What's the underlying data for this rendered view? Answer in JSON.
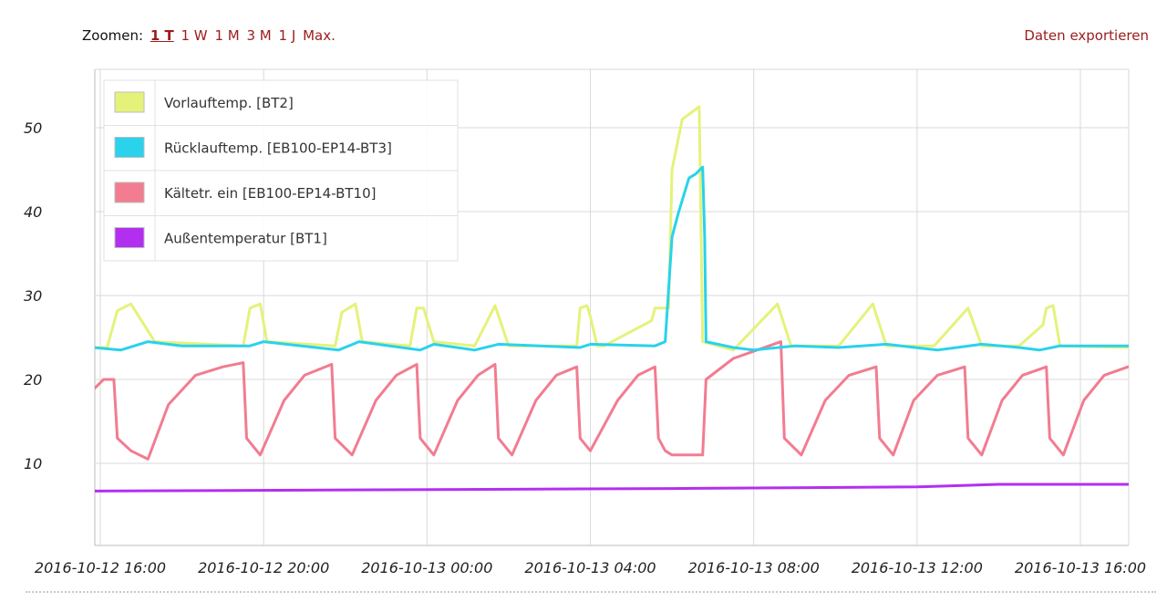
{
  "toolbar": {
    "zoom_label": "Zoomen:",
    "zoom_options": [
      "1 T",
      "1 W",
      "1 M",
      "3 M",
      "1 J",
      "Max."
    ],
    "active_zoom": "1 T",
    "export_label": "Daten exportieren"
  },
  "colors": {
    "series": [
      "#e5f27a",
      "#2ad2ec",
      "#f27c90",
      "#b32ff0"
    ],
    "grid": "#d9d9d9"
  },
  "chart_data": {
    "type": "line",
    "xlim": [
      "2016-10-12 16:00",
      "2016-10-13 17:10"
    ],
    "ylim": [
      0,
      57
    ],
    "y_ticks": [
      10,
      20,
      30,
      40,
      50
    ],
    "x_ticks": [
      "2016-10-12 16:00",
      "2016-10-12 20:00",
      "2016-10-13 00:00",
      "2016-10-13 04:00",
      "2016-10-13 08:00",
      "2016-10-13 12:00",
      "2016-10-13 16:00"
    ],
    "grid": true,
    "legend_position": "top-left",
    "series": [
      {
        "name": "Vorlauftemp. [BT2]",
        "points": [
          [
            "2016-10-12 15:50",
            23.8
          ],
          [
            "2016-10-12 16:10",
            23.8
          ],
          [
            "2016-10-12 16:25",
            28.2
          ],
          [
            "2016-10-12 16:45",
            29.0
          ],
          [
            "2016-10-12 17:20",
            24.5
          ],
          [
            "2016-10-12 19:30",
            24.0
          ],
          [
            "2016-10-12 19:40",
            28.5
          ],
          [
            "2016-10-12 19:55",
            29.0
          ],
          [
            "2016-10-12 20:05",
            24.5
          ],
          [
            "2016-10-12 21:45",
            24.0
          ],
          [
            "2016-10-12 21:55",
            28.0
          ],
          [
            "2016-10-12 22:15",
            29.0
          ],
          [
            "2016-10-12 22:25",
            24.5
          ],
          [
            "2016-10-12 23:35",
            24.0
          ],
          [
            "2016-10-12 23:45",
            28.5
          ],
          [
            "2016-10-12 23:55",
            28.5
          ],
          [
            "2016-10-13 00:10",
            24.5
          ],
          [
            "2016-10-13 01:10",
            24.0
          ],
          [
            "2016-10-13 01:40",
            28.8
          ],
          [
            "2016-10-13 02:00",
            24.0
          ],
          [
            "2016-10-13 03:40",
            24.0
          ],
          [
            "2016-10-13 03:45",
            28.5
          ],
          [
            "2016-10-13 03:55",
            28.8
          ],
          [
            "2016-10-13 04:00",
            27.5
          ],
          [
            "2016-10-13 04:10",
            24.0
          ],
          [
            "2016-10-13 04:20",
            24.0
          ],
          [
            "2016-10-13 05:30",
            27.0
          ],
          [
            "2016-10-13 05:35",
            28.5
          ],
          [
            "2016-10-13 05:55",
            28.5
          ],
          [
            "2016-10-13 06:00",
            45.0
          ],
          [
            "2016-10-13 06:15",
            51.0
          ],
          [
            "2016-10-13 06:40",
            52.5
          ],
          [
            "2016-10-13 06:45",
            24.5
          ],
          [
            "2016-10-13 07:30",
            23.5
          ],
          [
            "2016-10-13 08:35",
            29.0
          ],
          [
            "2016-10-13 08:55",
            24.0
          ],
          [
            "2016-10-13 10:05",
            24.0
          ],
          [
            "2016-10-13 10:55",
            29.0
          ],
          [
            "2016-10-13 11:15",
            24.0
          ],
          [
            "2016-10-13 12:25",
            24.0
          ],
          [
            "2016-10-13 13:15",
            28.5
          ],
          [
            "2016-10-13 13:35",
            24.0
          ],
          [
            "2016-10-13 14:30",
            24.0
          ],
          [
            "2016-10-13 15:05",
            26.5
          ],
          [
            "2016-10-13 15:10",
            28.5
          ],
          [
            "2016-10-13 15:20",
            28.8
          ],
          [
            "2016-10-13 15:30",
            24.0
          ],
          [
            "2016-10-13 17:10",
            23.8
          ]
        ]
      },
      {
        "name": "Rücklauftemp. [EB100-EP14-BT3]",
        "points": [
          [
            "2016-10-12 15:50",
            23.8
          ],
          [
            "2016-10-12 16:30",
            23.5
          ],
          [
            "2016-10-12 17:10",
            24.5
          ],
          [
            "2016-10-12 18:00",
            24.0
          ],
          [
            "2016-10-12 19:40",
            24.0
          ],
          [
            "2016-10-12 20:00",
            24.5
          ],
          [
            "2016-10-12 21:50",
            23.5
          ],
          [
            "2016-10-12 22:20",
            24.5
          ],
          [
            "2016-10-12 23:50",
            23.5
          ],
          [
            "2016-10-13 00:10",
            24.2
          ],
          [
            "2016-10-13 01:10",
            23.5
          ],
          [
            "2016-10-13 01:45",
            24.2
          ],
          [
            "2016-10-13 03:45",
            23.8
          ],
          [
            "2016-10-13 04:00",
            24.2
          ],
          [
            "2016-10-13 05:35",
            24.0
          ],
          [
            "2016-10-13 05:50",
            24.5
          ],
          [
            "2016-10-13 06:00",
            37.0
          ],
          [
            "2016-10-13 06:10",
            40.0
          ],
          [
            "2016-10-13 06:25",
            44.0
          ],
          [
            "2016-10-13 06:35",
            44.5
          ],
          [
            "2016-10-13 06:45",
            45.3
          ],
          [
            "2016-10-13 06:48",
            37.0
          ],
          [
            "2016-10-13 06:50",
            24.5
          ],
          [
            "2016-10-13 07:30",
            23.8
          ],
          [
            "2016-10-13 08:00",
            23.5
          ],
          [
            "2016-10-13 09:00",
            24.0
          ],
          [
            "2016-10-13 10:05",
            23.8
          ],
          [
            "2016-10-13 11:15",
            24.2
          ],
          [
            "2016-10-13 12:30",
            23.5
          ],
          [
            "2016-10-13 13:35",
            24.2
          ],
          [
            "2016-10-13 14:30",
            23.8
          ],
          [
            "2016-10-13 15:00",
            23.5
          ],
          [
            "2016-10-13 15:30",
            24.0
          ],
          [
            "2016-10-13 17:10",
            24.0
          ]
        ]
      },
      {
        "name": "Kältetr. ein [EB100-EP14-BT10]",
        "points": [
          [
            "2016-10-12 15:50",
            18.8
          ],
          [
            "2016-10-12 16:05",
            20.0
          ],
          [
            "2016-10-12 16:20",
            20.0
          ],
          [
            "2016-10-12 16:25",
            13.0
          ],
          [
            "2016-10-12 16:45",
            11.5
          ],
          [
            "2016-10-12 17:10",
            10.5
          ],
          [
            "2016-10-12 17:40",
            17.0
          ],
          [
            "2016-10-12 18:20",
            20.5
          ],
          [
            "2016-10-12 19:00",
            21.5
          ],
          [
            "2016-10-12 19:30",
            22.0
          ],
          [
            "2016-10-12 19:35",
            13.0
          ],
          [
            "2016-10-12 19:55",
            11.0
          ],
          [
            "2016-10-12 20:30",
            17.5
          ],
          [
            "2016-10-12 21:00",
            20.5
          ],
          [
            "2016-10-12 21:40",
            21.8
          ],
          [
            "2016-10-12 21:45",
            13.0
          ],
          [
            "2016-10-12 22:10",
            11.0
          ],
          [
            "2016-10-12 22:45",
            17.5
          ],
          [
            "2016-10-12 23:15",
            20.5
          ],
          [
            "2016-10-12 23:45",
            21.8
          ],
          [
            "2016-10-12 23:50",
            13.0
          ],
          [
            "2016-10-13 00:10",
            11.0
          ],
          [
            "2016-10-13 00:45",
            17.5
          ],
          [
            "2016-10-13 01:15",
            20.5
          ],
          [
            "2016-10-13 01:40",
            21.8
          ],
          [
            "2016-10-13 01:45",
            13.0
          ],
          [
            "2016-10-13 02:05",
            11.0
          ],
          [
            "2016-10-13 02:40",
            17.5
          ],
          [
            "2016-10-13 03:10",
            20.5
          ],
          [
            "2016-10-13 03:40",
            21.5
          ],
          [
            "2016-10-13 03:45",
            13.0
          ],
          [
            "2016-10-13 04:00",
            11.5
          ],
          [
            "2016-10-13 04:40",
            17.5
          ],
          [
            "2016-10-13 05:10",
            20.5
          ],
          [
            "2016-10-13 05:35",
            21.5
          ],
          [
            "2016-10-13 05:40",
            13.0
          ],
          [
            "2016-10-13 05:50",
            11.5
          ],
          [
            "2016-10-13 06:00",
            11.0
          ],
          [
            "2016-10-13 06:45",
            11.0
          ],
          [
            "2016-10-13 06:50",
            20.0
          ],
          [
            "2016-10-13 07:30",
            22.5
          ],
          [
            "2016-10-13 08:40",
            24.5
          ],
          [
            "2016-10-13 08:45",
            13.0
          ],
          [
            "2016-10-13 09:10",
            11.0
          ],
          [
            "2016-10-13 09:45",
            17.5
          ],
          [
            "2016-10-13 10:20",
            20.5
          ],
          [
            "2016-10-13 11:00",
            21.5
          ],
          [
            "2016-10-13 11:05",
            13.0
          ],
          [
            "2016-10-13 11:25",
            11.0
          ],
          [
            "2016-10-13 11:55",
            17.5
          ],
          [
            "2016-10-13 12:30",
            20.5
          ],
          [
            "2016-10-13 13:10",
            21.5
          ],
          [
            "2016-10-13 13:15",
            13.0
          ],
          [
            "2016-10-13 13:35",
            11.0
          ],
          [
            "2016-10-13 14:05",
            17.5
          ],
          [
            "2016-10-13 14:35",
            20.5
          ],
          [
            "2016-10-13 15:10",
            21.5
          ],
          [
            "2016-10-13 15:15",
            13.0
          ],
          [
            "2016-10-13 15:35",
            11.0
          ],
          [
            "2016-10-13 16:05",
            17.5
          ],
          [
            "2016-10-13 16:35",
            20.5
          ],
          [
            "2016-10-13 17:10",
            21.5
          ]
        ]
      },
      {
        "name": "Außentemperatur [BT1]",
        "points": [
          [
            "2016-10-12 15:50",
            6.7
          ],
          [
            "2016-10-13 06:00",
            7.0
          ],
          [
            "2016-10-13 12:00",
            7.2
          ],
          [
            "2016-10-13 14:00",
            7.5
          ],
          [
            "2016-10-13 17:10",
            7.5
          ]
        ]
      }
    ]
  }
}
